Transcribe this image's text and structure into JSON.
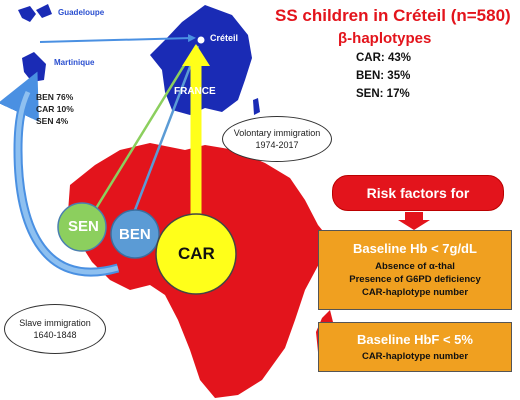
{
  "title": "SS children in Créteil (n=580)",
  "subtitle": "β-haplotypes",
  "haplotypes": [
    "CAR: 43%",
    "BEN: 35%",
    "SEN: 17%"
  ],
  "places": {
    "guadeloupe": "Guadeloupe",
    "martinique": "Martinique",
    "creteil": "Créteil",
    "france": "FRANCE"
  },
  "caribbean_haplotypes": [
    "BEN 76%",
    "CAR 10%",
    "SEN 4%"
  ],
  "voluntary_immigration": {
    "line1": "Volontary immigration",
    "line2": "1974-2017"
  },
  "slave_immigration": {
    "line1": "Slave immigration",
    "line2": "1640-1848"
  },
  "circles": {
    "sen": "SEN",
    "ben": "BEN",
    "car": "CAR"
  },
  "risk_factors_label": "Risk factors for",
  "box1": {
    "head": "Baseline Hb < 7g/dL",
    "items": [
      "Absence of α-thal",
      "Presence of G6PD deficiency",
      "CAR-haplotype number"
    ]
  },
  "box2": {
    "head": "Baseline HbF < 5%",
    "items": [
      "CAR-haplotype number"
    ]
  },
  "colors": {
    "accent": "#e3141c",
    "africa": "#e3141c",
    "france": "#1a2bb5",
    "caribbean": "#1a2bb5",
    "sen": "#8ccf5e",
    "ben": "#5b9bd5",
    "car": "#ffff1a",
    "box": "#f0a020",
    "arrow_blue": "#4a90e2",
    "arrow_yellow": "#ffff1a"
  }
}
